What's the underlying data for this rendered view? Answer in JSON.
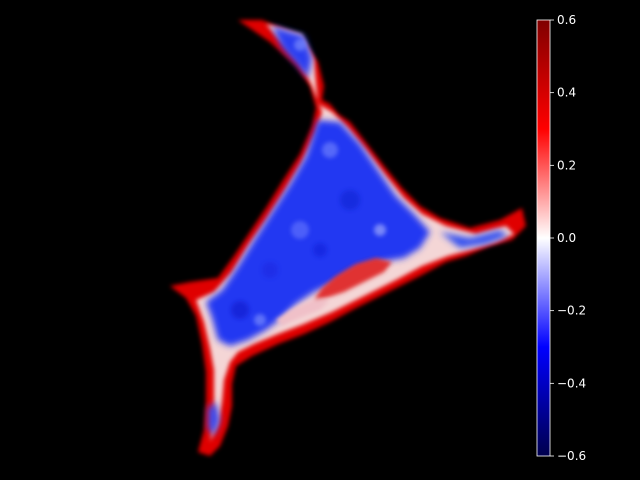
{
  "figure": {
    "background": "#000000",
    "image_kind": "diverging colormap heatmap of a triangular cell-like region on black background"
  },
  "colorbar": {
    "colormap": "seismic",
    "colors": {
      "low": "#00004d",
      "mid_low": "#0000ff",
      "center": "#ffffff",
      "mid_high": "#ff0000",
      "high": "#800000"
    },
    "vmin": -0.6,
    "vmax": 0.6,
    "ticks": [
      {
        "value": 0.6,
        "label": "0.6"
      },
      {
        "value": 0.4,
        "label": "0.4"
      },
      {
        "value": 0.2,
        "label": "0.2"
      },
      {
        "value": 0.0,
        "label": "0.0"
      },
      {
        "value": -0.2,
        "label": "−0.2"
      },
      {
        "value": -0.4,
        "label": "−0.4"
      },
      {
        "value": -0.6,
        "label": "−0.6"
      }
    ]
  }
}
